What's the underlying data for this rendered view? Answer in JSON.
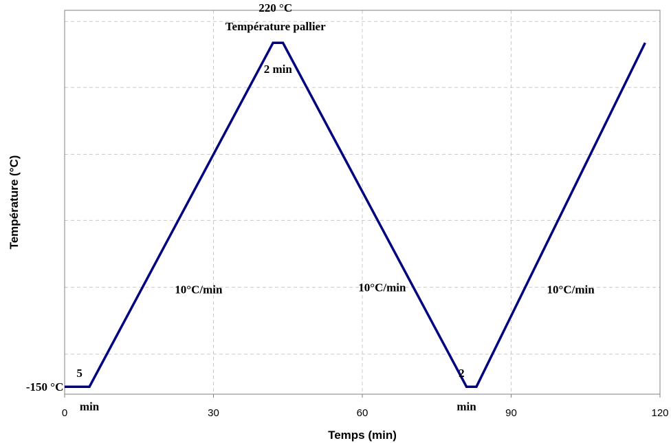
{
  "chart_data": {
    "type": "line",
    "title": "",
    "xlabel": "Temps (min)",
    "ylabel": "Température (°C)",
    "xlim": [
      0,
      120
    ],
    "ylim": [
      -158,
      255
    ],
    "x_ticks": [
      0,
      30,
      60,
      90,
      120
    ],
    "x_tick_labels": [
      "0",
      "30",
      "60",
      "90",
      "120"
    ],
    "y_gridlines": [
      -115,
      -43,
      29,
      100,
      172,
      243
    ],
    "grid": true,
    "series": [
      {
        "color": "#000080",
        "points": [
          {
            "x": 0,
            "y": -150
          },
          {
            "x": 5,
            "y": -150
          },
          {
            "x": 42,
            "y": 220
          },
          {
            "x": 44,
            "y": 220
          },
          {
            "x": 81,
            "y": -150
          },
          {
            "x": 83,
            "y": -150
          },
          {
            "x": 117,
            "y": 220
          }
        ]
      }
    ],
    "annotations": [
      {
        "text": "-150 °C",
        "x": -4,
        "y": -150
      },
      {
        "text": "5",
        "x": 3,
        "y": -135
      },
      {
        "text": "min",
        "x": 5,
        "y": -171
      },
      {
        "text": "10°C/min",
        "x": 27,
        "y": -45
      },
      {
        "text": "220 °C",
        "x": 42.5,
        "y": 258
      },
      {
        "text": "Température pallier",
        "x": 42.5,
        "y": 238
      },
      {
        "text": "2 min",
        "x": 43,
        "y": 192
      },
      {
        "text": "10°C/min",
        "x": 64,
        "y": -43
      },
      {
        "text": "2",
        "x": 80,
        "y": -135
      },
      {
        "text": "min",
        "x": 81,
        "y": -171
      },
      {
        "text": "10°C/min",
        "x": 102,
        "y": -45
      }
    ]
  },
  "colors": {
    "line": "#000080",
    "grid": "#c8c8c8",
    "axis": "#808080",
    "text": "#000000"
  }
}
